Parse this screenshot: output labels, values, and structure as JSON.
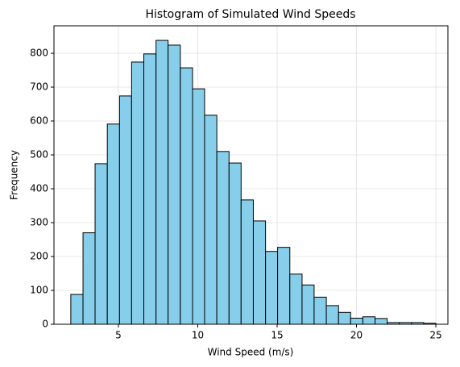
{
  "chart_data": {
    "type": "histogram",
    "title": "Histogram of Simulated Wind Speeds",
    "x_label": "Wind Speed (m/s)",
    "y_label": "Frequency",
    "bins": [
      2.0,
      2.77,
      3.53,
      4.3,
      5.07,
      5.83,
      6.6,
      7.37,
      8.13,
      8.9,
      9.67,
      10.43,
      11.2,
      11.97,
      12.73,
      13.5,
      14.27,
      15.03,
      15.8,
      16.57,
      17.33,
      18.1,
      18.87,
      19.63,
      20.4,
      21.17,
      21.93,
      22.7,
      23.47,
      24.23,
      25.0
    ],
    "values": [
      88,
      270,
      474,
      591,
      674,
      774,
      798,
      838,
      824,
      757,
      695,
      617,
      510,
      476,
      367,
      305,
      215,
      227,
      148,
      116,
      80,
      55,
      35,
      18,
      22,
      17,
      5,
      5,
      5,
      3
    ],
    "color": "#87ceeb",
    "edgecolor": "#000000",
    "xlim": [
      0.94,
      25.76
    ],
    "xticks": [
      5,
      10,
      15,
      20,
      25
    ],
    "ylim": [
      0,
      881
    ],
    "yticks": [
      0,
      100,
      200,
      300,
      400,
      500,
      600,
      700,
      800
    ],
    "grid": true
  }
}
